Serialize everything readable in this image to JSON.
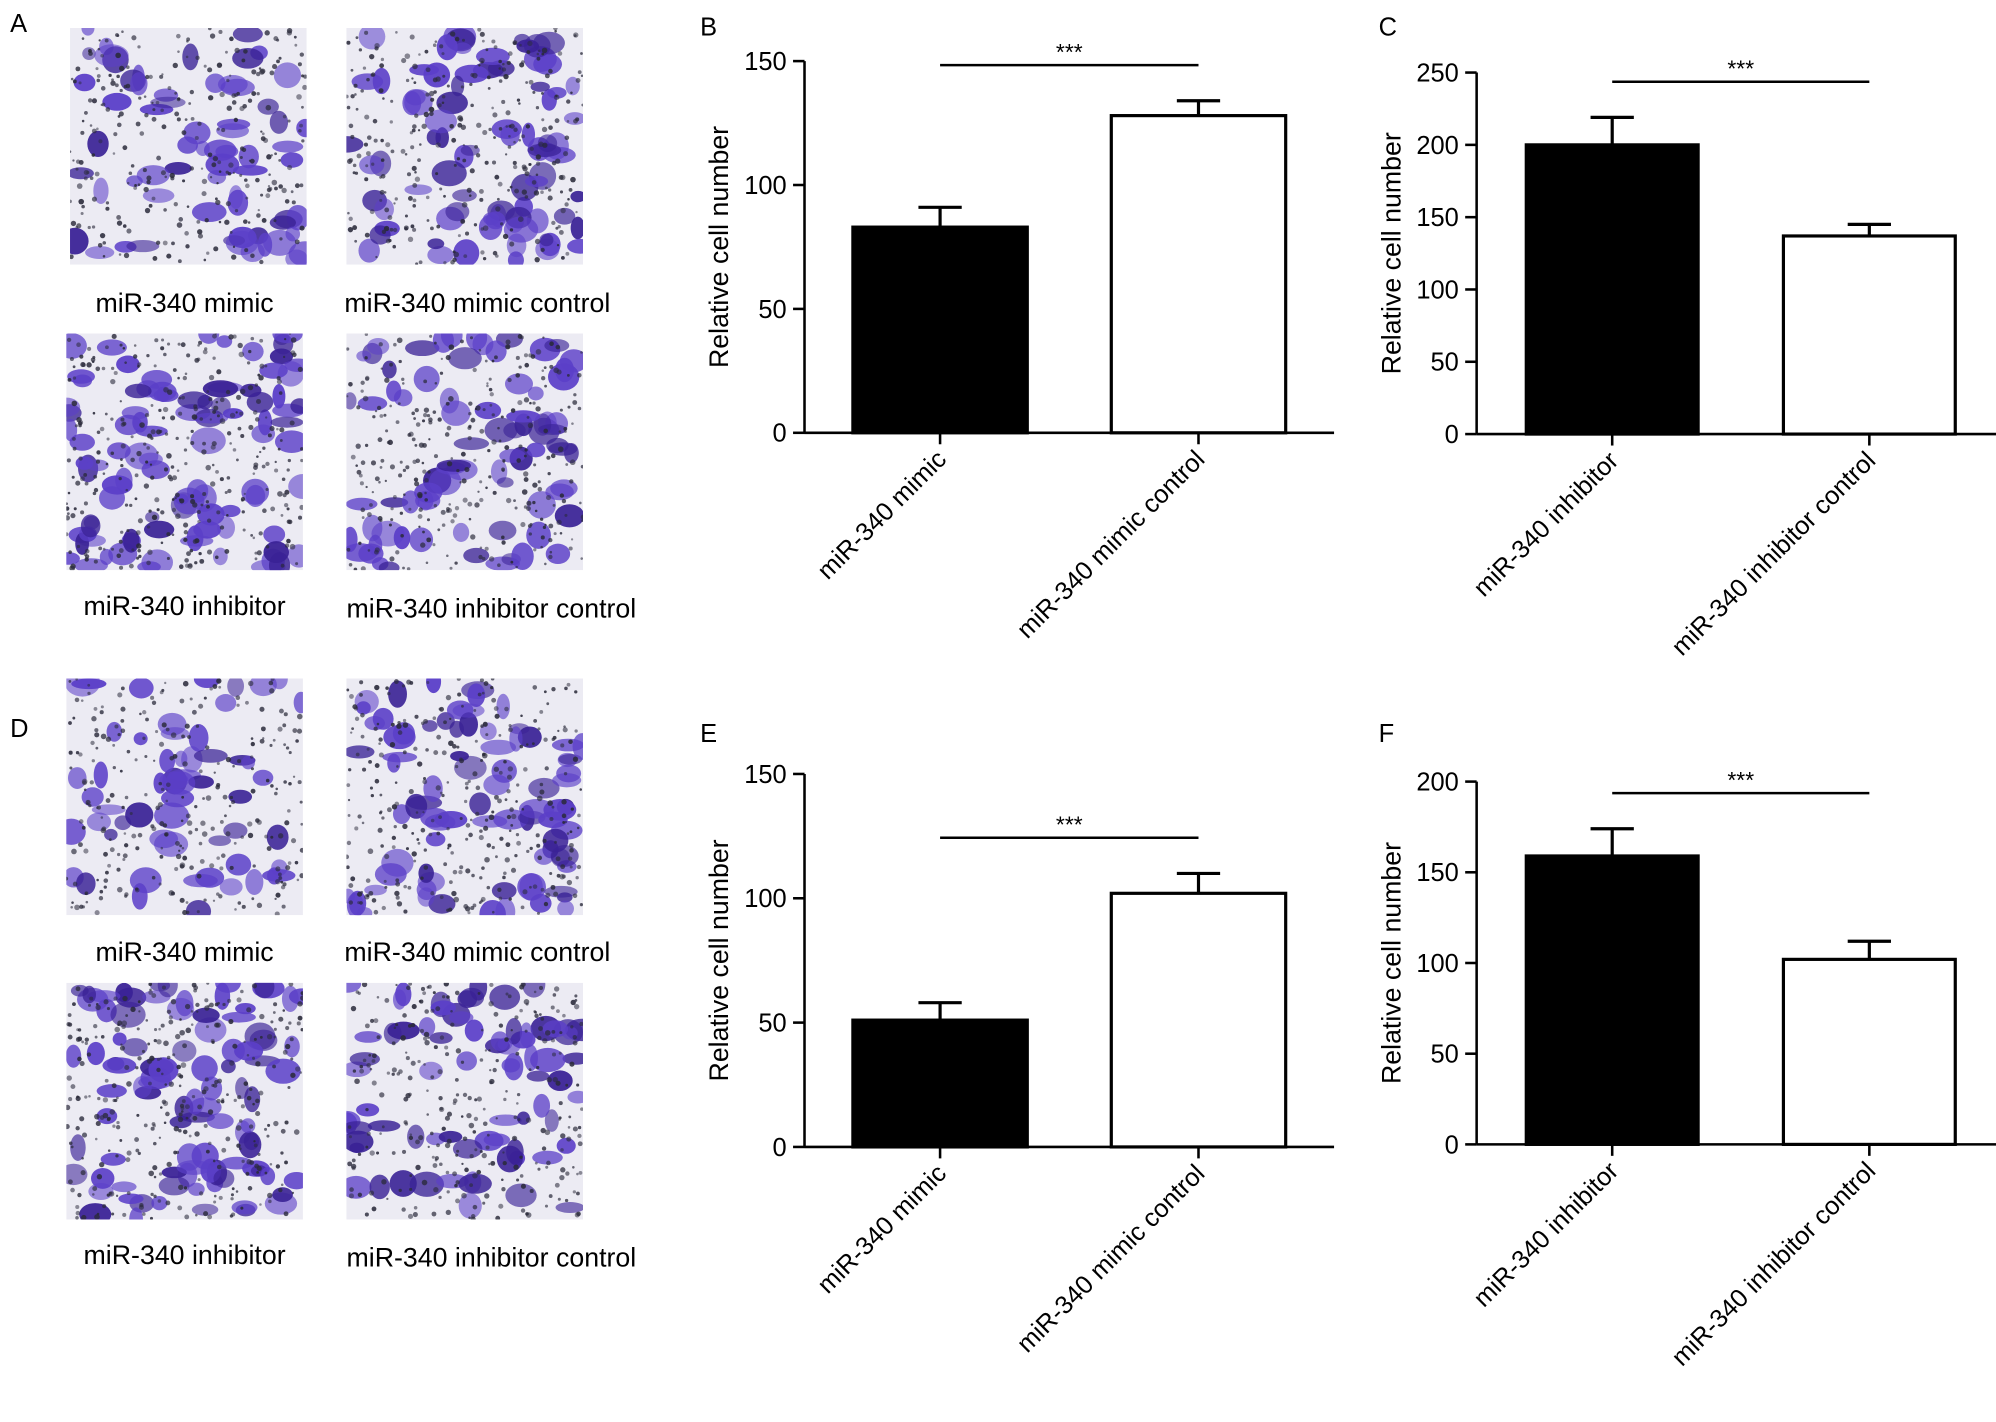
{
  "panels": {
    "A": {
      "letter": "A",
      "images": [
        {
          "caption": "miR-340 mimic",
          "density": 0.55
        },
        {
          "caption": "miR-340 mimic control",
          "density": 0.8
        },
        {
          "caption": "miR-340 inhibitor",
          "density": 1.0
        },
        {
          "caption": "miR-340 inhibitor control",
          "density": 0.75
        }
      ]
    },
    "D": {
      "letter": "D",
      "images": [
        {
          "caption": "miR-340 mimic",
          "density": 0.45
        },
        {
          "caption": "miR-340 mimic control",
          "density": 0.8
        },
        {
          "caption": "miR-340 inhibitor",
          "density": 0.95
        },
        {
          "caption": "miR-340 inhibitor control",
          "density": 0.7
        }
      ]
    }
  },
  "colors": {
    "stain": "#5b3fc8",
    "stain_dark": "#3a2296",
    "nucleus": "#2a2a3a",
    "background_cells": "#ecebf3",
    "bar_dark": "#000000",
    "bar_light": "#ffffff"
  },
  "chart_data": [
    {
      "panel": "B",
      "type": "bar",
      "categories": [
        "miR-340 mimic",
        "miR-340 mimic control"
      ],
      "values": [
        83,
        128
      ],
      "errors": [
        8,
        6
      ],
      "ylabel": "Relative cell number",
      "ylim": [
        0,
        150
      ],
      "yticks": [
        0,
        50,
        100,
        150
      ],
      "significance": "***",
      "bar_fills": [
        "#000000",
        "#ffffff"
      ]
    },
    {
      "panel": "C",
      "type": "bar",
      "categories": [
        "miR-340 inhibitor",
        "miR-340 inhibitor control"
      ],
      "values": [
        200,
        137
      ],
      "errors": [
        19,
        8
      ],
      "ylabel": "Relative cell number",
      "ylim": [
        0,
        250
      ],
      "yticks": [
        0,
        50,
        100,
        150,
        200,
        250
      ],
      "significance": "***",
      "bar_fills": [
        "#000000",
        "#ffffff"
      ]
    },
    {
      "panel": "E",
      "type": "bar",
      "categories": [
        "miR-340 mimic",
        "miR-340 mimic control"
      ],
      "values": [
        51,
        102
      ],
      "errors": [
        7,
        8
      ],
      "ylabel": "Relative cell number",
      "ylim": [
        0,
        150
      ],
      "yticks": [
        0,
        50,
        100,
        150
      ],
      "significance": "***",
      "bar_fills": [
        "#000000",
        "#ffffff"
      ]
    },
    {
      "panel": "F",
      "type": "bar",
      "categories": [
        "miR-340 inhibitor",
        "miR-340 inhibitor control"
      ],
      "values": [
        159,
        102
      ],
      "errors": [
        15,
        10
      ],
      "ylabel": "Relative cell number",
      "ylim": [
        0,
        200
      ],
      "yticks": [
        0,
        50,
        100,
        150,
        200
      ],
      "significance": "***",
      "bar_fills": [
        "#000000",
        "#ffffff"
      ]
    }
  ]
}
